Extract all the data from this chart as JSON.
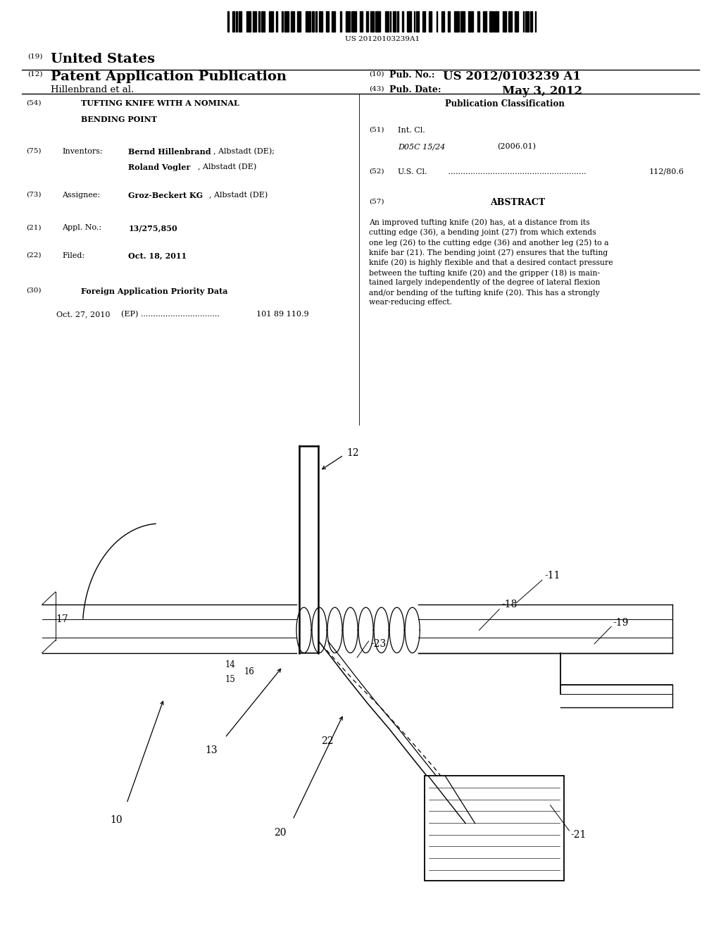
{
  "background_color": "#ffffff",
  "barcode_text": "US 20120103239A1",
  "header_19": "(19)",
  "header_us": "United States",
  "header_12": "(12)",
  "header_pap": "Patent Application Publication",
  "header_hillenbrand": "Hillenbrand et al.",
  "header_10": "(10)",
  "header_pub_no_label": "Pub. No.:",
  "header_pub_no_val": "US 2012/0103239 A1",
  "header_43": "(43)",
  "header_pub_date_label": "Pub. Date:",
  "header_pub_date_val": "May 3, 2012",
  "s54_text1": "TUFTING KNIFE WITH A NOMINAL",
  "s54_text2": "BENDING POINT",
  "s75_name1_bold": "Bernd Hillenbrand",
  "s75_name1_rest": ", Albstadt (DE);",
  "s75_name2_bold": "Roland Vogler",
  "s75_name2_rest": ", Albstadt (DE)",
  "s73_bold": "Groz-Beckert KG",
  "s73_rest": ", Albstadt (DE)",
  "s21_val": "13/275,850",
  "s22_val": "Oct. 18, 2011",
  "s30_bold": "Foreign Application Priority Data",
  "s30_ep_date": "Oct. 27, 2010",
  "s30_ep_dots": "(EP) ................................",
  "s30_ep_num": "101 89 110.9",
  "rc_pub_class": "Publication Classification",
  "rc_int_cl_label": "Int. Cl.",
  "rc_int_cl_code": "D05C 15/24",
  "rc_int_cl_year": "(2006.01)",
  "rc_us_cl_label": "U.S. Cl.",
  "rc_us_cl_dots": " ........................................................",
  "rc_us_cl_val": "112/80.6",
  "rc_abstract_title": "ABSTRACT",
  "rc_abstract": "An improved tufting knife (20) has, at a distance from its\ncutting edge (36), a bending joint (27) from which extends\none leg (26) to the cutting edge (36) and another leg (25) to a\nknife bar (21). The bending joint (27) ensures that the tufting\nknife (20) is highly flexible and that a desired contact pressure\nbetween the tufting knife (20) and the gripper (18) is main-\ntained largely independently of the degree of lateral flexion\nand/or bending of the tufting knife (20). This has a strongly\nwear-reducing effect."
}
